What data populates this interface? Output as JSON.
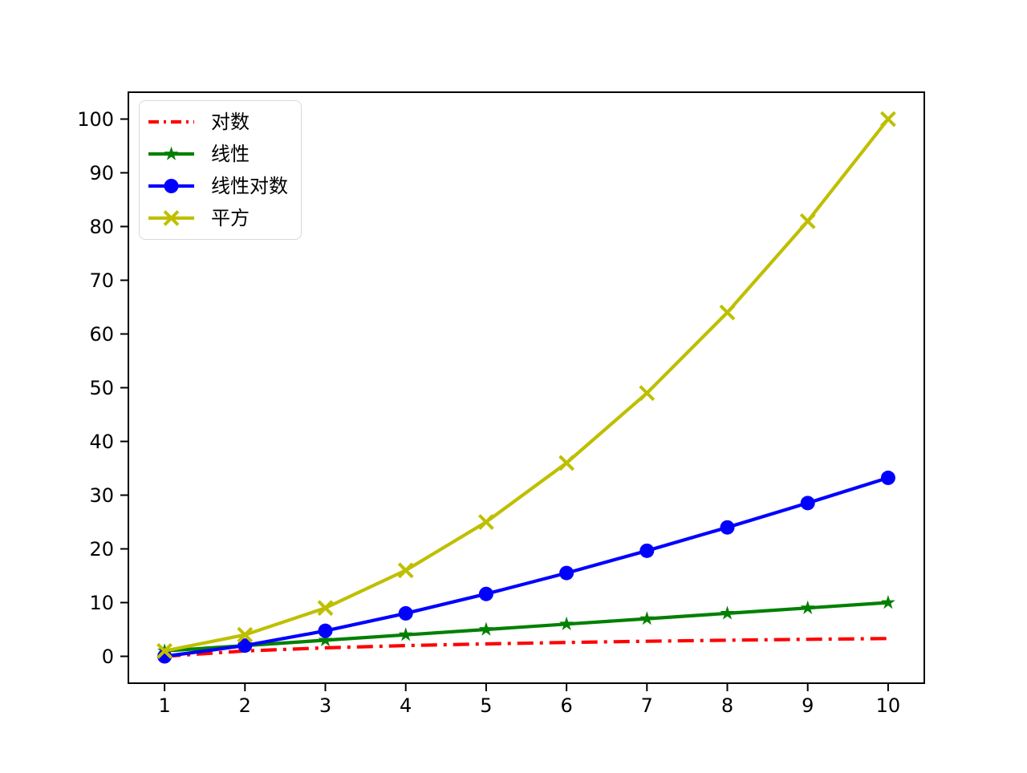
{
  "figure": {
    "background_color": "#ffffff",
    "axis_color": "#000000",
    "legend_edge_color": "#d9d9d9"
  },
  "chart_data": {
    "type": "line",
    "title": "",
    "xlabel": "",
    "ylabel": "",
    "grid": false,
    "legend_position": "upper left",
    "x": [
      1,
      2,
      3,
      4,
      5,
      6,
      7,
      8,
      9,
      10
    ],
    "xticks": [
      "1",
      "2",
      "3",
      "4",
      "5",
      "6",
      "7",
      "8",
      "9",
      "10"
    ],
    "yticks": [
      "0",
      "10",
      "20",
      "30",
      "40",
      "50",
      "60",
      "70",
      "80",
      "90",
      "100"
    ],
    "ytick_values": [
      0,
      10,
      20,
      30,
      40,
      50,
      60,
      70,
      80,
      90,
      100
    ],
    "xlim": [
      0.55,
      10.45
    ],
    "ylim": [
      -5,
      105
    ],
    "series": [
      {
        "id": "log",
        "name": "对数",
        "color": "#ff0000",
        "linestyle": "dashdot",
        "marker": "none",
        "values": [
          0,
          1,
          1.58,
          2,
          2.32,
          2.58,
          2.81,
          3,
          3.17,
          3.32
        ]
      },
      {
        "id": "linear",
        "name": "线性",
        "color": "#008000",
        "linestyle": "solid",
        "marker": "star",
        "values": [
          1,
          2,
          3,
          4,
          5,
          6,
          7,
          8,
          9,
          10
        ]
      },
      {
        "id": "linearlog",
        "name": "线性对数",
        "color": "#0000ff",
        "linestyle": "solid",
        "marker": "circle",
        "values": [
          0,
          2,
          4.75,
          8,
          11.61,
          15.51,
          19.65,
          24,
          28.53,
          33.22
        ]
      },
      {
        "id": "square",
        "name": "平方",
        "color": "#bfbf00",
        "linestyle": "solid",
        "marker": "x",
        "values": [
          1,
          4,
          9,
          16,
          25,
          36,
          49,
          64,
          81,
          100
        ]
      }
    ]
  }
}
